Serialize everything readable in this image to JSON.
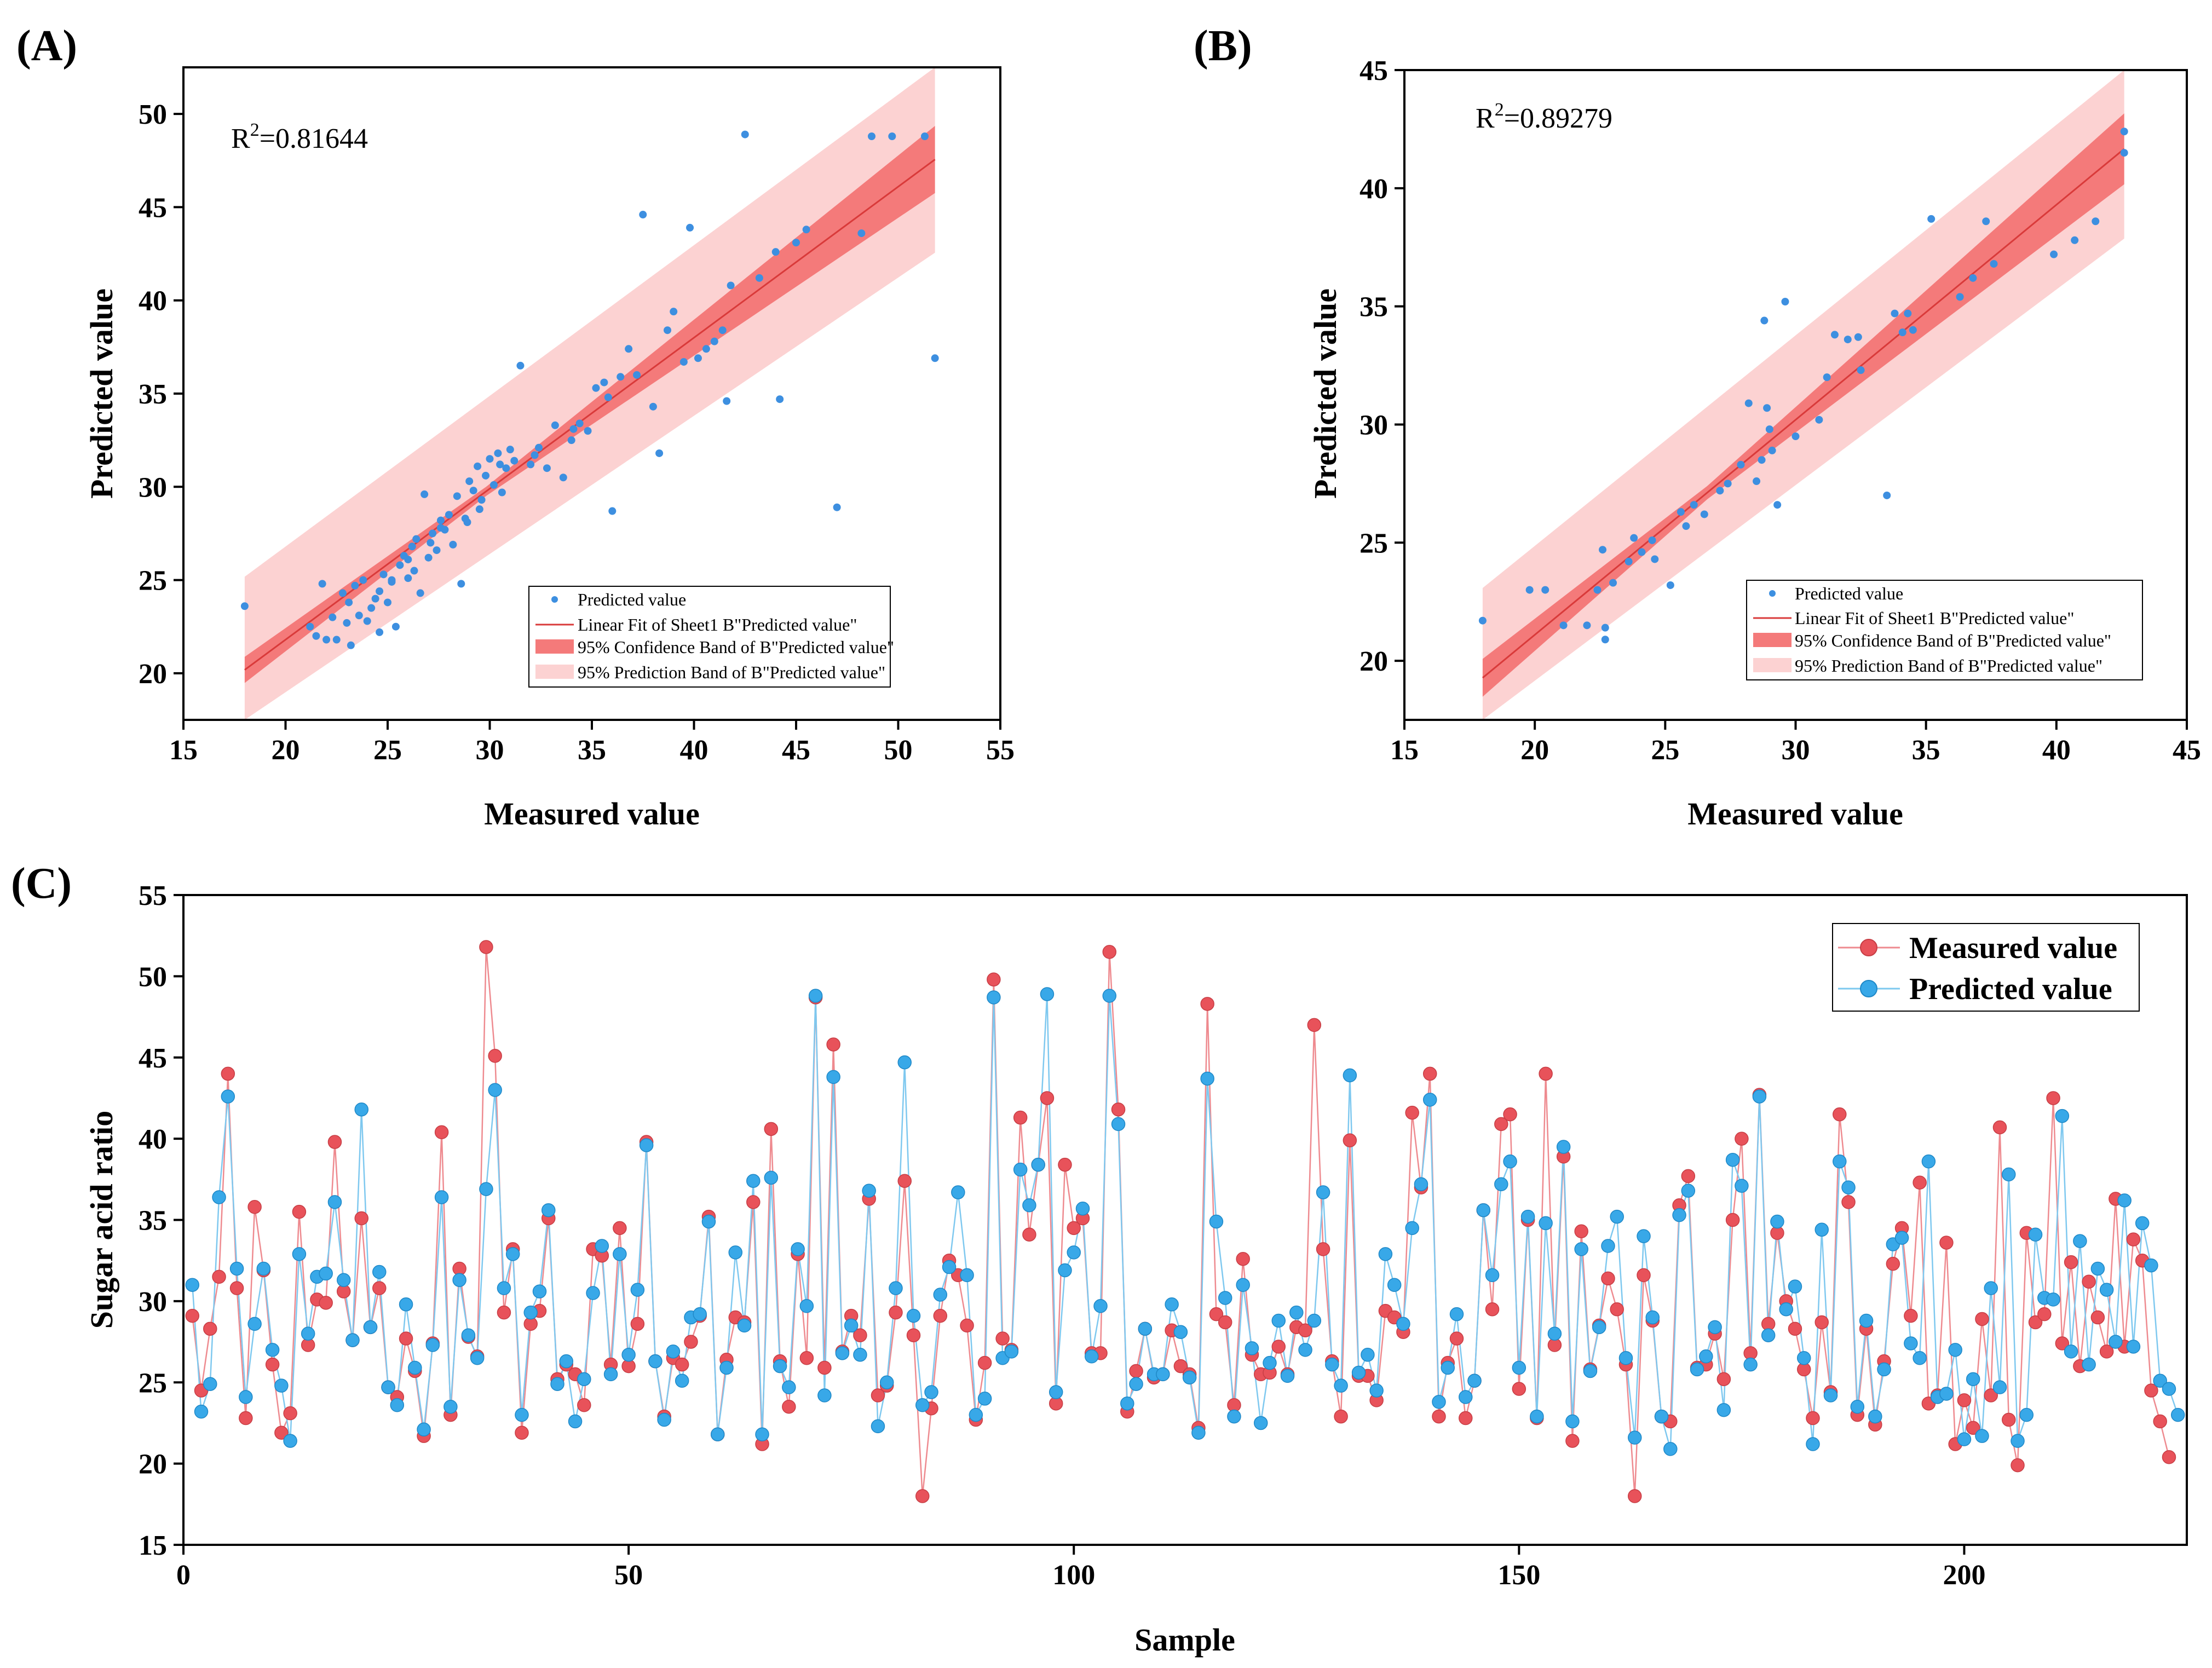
{
  "colors": {
    "measured": "#e8525a",
    "measured_line": "#ee8a8f",
    "predicted": "#38a8e8",
    "predicted_line": "#7ec8ef",
    "scatter_point": "#3d8fe0",
    "fit_line": "#d93a3a",
    "confidence_band": "#f47a7a",
    "prediction_band": "#fcd2d2"
  },
  "chart_data": [
    {
      "panel": "(A)",
      "type": "scatter",
      "xlabel": "Measured value",
      "ylabel": "Predicted value",
      "xlim": [
        15,
        55
      ],
      "ylim": [
        17.5,
        52.5
      ],
      "xticks": [
        15,
        20,
        25,
        30,
        35,
        40,
        45,
        50,
        55
      ],
      "yticks": [
        20,
        25,
        30,
        35,
        40,
        45,
        50
      ],
      "annotation": {
        "prefix": "R",
        "sup": "2",
        "value": "=0.81644"
      },
      "fit": {
        "slope": 0.81,
        "intercept": 5.6,
        "x_range": [
          18,
          51.8
        ]
      },
      "confidence_half_width": [
        0.7,
        1.8
      ],
      "prediction_half_width": 5.0,
      "legend": [
        "Predicted value",
        "Linear Fit of Sheet1 B\"Predicted value\"",
        "95% Confidence Band of B\"Predicted value\"",
        "95% Prediction Band of B\"Predicted value\""
      ],
      "points": [
        [
          18,
          23.6
        ],
        [
          21.2,
          22.5
        ],
        [
          21.5,
          22
        ],
        [
          21.8,
          24.8
        ],
        [
          22,
          21.8
        ],
        [
          22.3,
          23
        ],
        [
          22.5,
          21.8
        ],
        [
          22.8,
          24.3
        ],
        [
          23,
          22.7
        ],
        [
          23.2,
          21.5
        ],
        [
          23.4,
          24.7
        ],
        [
          23.6,
          23.1
        ],
        [
          23.8,
          25
        ],
        [
          24,
          22.8
        ],
        [
          24.2,
          23.5
        ],
        [
          24.4,
          24
        ],
        [
          24.6,
          22.2
        ],
        [
          24.8,
          25.3
        ],
        [
          25,
          23.8
        ],
        [
          25.2,
          24.9
        ],
        [
          25.4,
          22.5
        ],
        [
          25.6,
          25.8
        ],
        [
          25.8,
          26.3
        ],
        [
          26,
          25.1
        ],
        [
          26.2,
          26.8
        ],
        [
          26.4,
          27.2
        ],
        [
          26.6,
          24.3
        ],
        [
          26.8,
          29.6
        ],
        [
          27,
          26.2
        ],
        [
          27.2,
          27.5
        ],
        [
          27.4,
          26.6
        ],
        [
          27.6,
          28.2
        ],
        [
          27.8,
          27.7
        ],
        [
          28,
          28.5
        ],
        [
          28.2,
          26.9
        ],
        [
          28.4,
          29.5
        ],
        [
          28.6,
          24.8
        ],
        [
          28.8,
          28.3
        ],
        [
          29,
          30.3
        ],
        [
          29.2,
          29.8
        ],
        [
          29.4,
          31.1
        ],
        [
          29.6,
          29.3
        ],
        [
          29.8,
          30.6
        ],
        [
          30,
          31.5
        ],
        [
          30.2,
          30.1
        ],
        [
          30.4,
          31.8
        ],
        [
          30.6,
          29.7
        ],
        [
          30.8,
          31
        ],
        [
          31,
          32
        ],
        [
          31.2,
          31.4
        ],
        [
          31.5,
          36.5
        ],
        [
          32,
          31.2
        ],
        [
          32.4,
          32.1
        ],
        [
          32.8,
          31
        ],
        [
          33.2,
          33.3
        ],
        [
          33.6,
          30.5
        ],
        [
          34,
          32.5
        ],
        [
          34.4,
          33.4
        ],
        [
          34.8,
          33
        ],
        [
          35.2,
          35.3
        ],
        [
          35.6,
          35.6
        ],
        [
          36,
          28.7
        ],
        [
          36.4,
          35.9
        ],
        [
          36.8,
          37.4
        ],
        [
          37.2,
          36
        ],
        [
          37.5,
          44.6
        ],
        [
          38,
          34.3
        ],
        [
          38.3,
          31.8
        ],
        [
          38.7,
          38.4
        ],
        [
          39,
          39.4
        ],
        [
          39.5,
          36.7
        ],
        [
          39.8,
          43.9
        ],
        [
          40.2,
          36.9
        ],
        [
          40.6,
          37.4
        ],
        [
          41,
          37.8
        ],
        [
          41.4,
          38.4
        ],
        [
          41.6,
          34.6
        ],
        [
          41.8,
          40.8
        ],
        [
          42.5,
          48.9
        ],
        [
          43.2,
          41.2
        ],
        [
          44,
          42.6
        ],
        [
          44.2,
          34.7
        ],
        [
          45,
          43.1
        ],
        [
          45.5,
          43.8
        ],
        [
          47,
          28.9
        ],
        [
          48.2,
          43.6
        ],
        [
          48.7,
          48.8
        ],
        [
          49.7,
          48.8
        ],
        [
          51.3,
          48.8
        ],
        [
          51.8,
          36.9
        ],
        [
          26.3,
          25.5
        ],
        [
          27.1,
          27
        ],
        [
          28.9,
          28.1
        ],
        [
          29.5,
          28.8
        ],
        [
          25.2,
          25
        ],
        [
          26,
          26.1
        ],
        [
          30.5,
          31.2
        ],
        [
          32.2,
          31.7
        ],
        [
          34.1,
          33.1
        ],
        [
          35.8,
          34.8
        ],
        [
          23.1,
          23.8
        ],
        [
          24.6,
          24.4
        ],
        [
          27.6,
          27.8
        ]
      ]
    },
    {
      "panel": "(B)",
      "type": "scatter",
      "xlabel": "Measured value",
      "ylabel": "Predicted value",
      "xlim": [
        15,
        45
      ],
      "ylim": [
        17.5,
        45
      ],
      "xticks": [
        15,
        20,
        25,
        30,
        35,
        40,
        45
      ],
      "yticks": [
        20,
        25,
        30,
        35,
        40,
        45
      ],
      "annotation": {
        "prefix": "R",
        "sup": "2",
        "value": "=0.89279"
      },
      "fit": {
        "slope": 0.91,
        "intercept": 2.9,
        "x_range": [
          18,
          42.6
        ]
      },
      "confidence_half_width": [
        0.8,
        1.5
      ],
      "prediction_half_width": 3.8,
      "legend": [
        "Predicted value",
        "Linear Fit of Sheet1 B\"Predicted value\"",
        "95% Confidence Band of B\"Predicted value\"",
        "95% Prediction Band of B\"Predicted value\""
      ],
      "points": [
        [
          18,
          21.7
        ],
        [
          19.8,
          23
        ],
        [
          20.4,
          23
        ],
        [
          21.1,
          21.5
        ],
        [
          22,
          21.5
        ],
        [
          22.4,
          23
        ],
        [
          22.6,
          24.7
        ],
        [
          22.7,
          20.9
        ],
        [
          22.7,
          21.4
        ],
        [
          23,
          23.3
        ],
        [
          23.6,
          24.2
        ],
        [
          23.8,
          25.2
        ],
        [
          24.1,
          24.6
        ],
        [
          24.5,
          25.1
        ],
        [
          24.6,
          24.3
        ],
        [
          25.2,
          23.2
        ],
        [
          25.6,
          26.3
        ],
        [
          25.8,
          25.7
        ],
        [
          26.1,
          26.6
        ],
        [
          26.5,
          26.2
        ],
        [
          27.1,
          27.2
        ],
        [
          27.4,
          27.5
        ],
        [
          27.9,
          28.3
        ],
        [
          28.2,
          30.9
        ],
        [
          28.5,
          27.6
        ],
        [
          28.7,
          28.5
        ],
        [
          28.8,
          34.4
        ],
        [
          28.9,
          30.7
        ],
        [
          29,
          29.8
        ],
        [
          29.3,
          26.6
        ],
        [
          29.6,
          35.2
        ],
        [
          30,
          29.5
        ],
        [
          31.2,
          32
        ],
        [
          31.5,
          33.8
        ],
        [
          32,
          33.6
        ],
        [
          32.4,
          33.7
        ],
        [
          32.5,
          32.3
        ],
        [
          33.5,
          27
        ],
        [
          33.8,
          34.7
        ],
        [
          34.3,
          34.7
        ],
        [
          34.5,
          34.0
        ],
        [
          35.2,
          38.7
        ],
        [
          36.8,
          36.2
        ],
        [
          37.3,
          38.6
        ],
        [
          37.6,
          36.8
        ],
        [
          39.9,
          37.2
        ],
        [
          40.7,
          37.8
        ],
        [
          41.5,
          38.6
        ],
        [
          42.6,
          41.5
        ],
        [
          42.6,
          42.4
        ],
        [
          36.3,
          35.4
        ],
        [
          34.1,
          33.9
        ],
        [
          30.9,
          30.2
        ],
        [
          29.1,
          28.9
        ]
      ]
    },
    {
      "panel": "(C)",
      "type": "line",
      "xlabel": "Sample",
      "ylabel": "Sugar acid ratio",
      "xlim": [
        0,
        225
      ],
      "ylim": [
        15,
        55
      ],
      "xticks": [
        0,
        50,
        100,
        150,
        200
      ],
      "yticks": [
        15,
        20,
        25,
        30,
        35,
        40,
        45,
        50,
        55
      ],
      "series": [
        {
          "name": "Measured value",
          "values": [
            29.1,
            24.5,
            28.3,
            31.5,
            44,
            30.8,
            22.8,
            35.8,
            31.9,
            26.1,
            21.9,
            23.1,
            35.5,
            27.3,
            30.1,
            29.9,
            39.8,
            30.6,
            27.6,
            35.1,
            28.4,
            30.8,
            24.7,
            24.1,
            27.7,
            25.7,
            21.7,
            27.4,
            40.4,
            23,
            32,
            27.8,
            26.6,
            51.8,
            45.1,
            29.3,
            33.2,
            21.9,
            28.6,
            29.4,
            35.1,
            25.2,
            26.1,
            25.5,
            23.6,
            33.2,
            32.8,
            26.1,
            34.5,
            26,
            28.6,
            39.8,
            26.3,
            22.9,
            26.5,
            26.1,
            27.5,
            29.1,
            35.2,
            21.8,
            26.4,
            29,
            28.7,
            36.1,
            21.2,
            40.6,
            26.3,
            23.5,
            32.9,
            26.5,
            48.7,
            25.9,
            45.8,
            26.9,
            29.1,
            27.9,
            36.3,
            24.2,
            24.8,
            29.3,
            37.4,
            27.9,
            18,
            23.4,
            29.1,
            32.5,
            31.6,
            28.5,
            22.7,
            26.2,
            49.8,
            27.7,
            27,
            41.3,
            34.1,
            38.4,
            42.5,
            23.7,
            38.4,
            34.5,
            35.1,
            26.8,
            26.8,
            51.5,
            41.8,
            23.2,
            25.7,
            28.3,
            25.3,
            25.5,
            28.2,
            26,
            25.5,
            22.2,
            48.3,
            29.2,
            28.7,
            23.6,
            32.6,
            26.7,
            25.5,
            25.6,
            27.2,
            25.5,
            28.4,
            28.2,
            47,
            33.2,
            26.3,
            22.9,
            39.9,
            25.4,
            25.4,
            23.9,
            29.4,
            29,
            28.1,
            41.6,
            37,
            44,
            22.9,
            26.2,
            27.7,
            22.8,
            25.1,
            35.6,
            29.5,
            40.9,
            41.5,
            24.6,
            35,
            22.8,
            44,
            27.3,
            38.9,
            21.4,
            34.3,
            25.8,
            28.5,
            31.4,
            29.5,
            26.1,
            18,
            31.6,
            28.8,
            22.9,
            22.6,
            35.9,
            37.7,
            25.9,
            26.1,
            28,
            25.2,
            35,
            40,
            26.8,
            42.7,
            28.6,
            34.2,
            30,
            28.3,
            25.8,
            22.8,
            28.7,
            24.4,
            41.5,
            36.1,
            23,
            28.3,
            22.4,
            26.3,
            32.3,
            34.5,
            29.1,
            37.3,
            23.7,
            24.2,
            33.6,
            21.2,
            23.9,
            22.2,
            28.9,
            24.2,
            40.7,
            22.7,
            19.9,
            34.2,
            28.7,
            29.2,
            42.5,
            27.4,
            32.4,
            26,
            31.2,
            29,
            26.9,
            36.3,
            27.2,
            33.8,
            32.5,
            24.5,
            22.6,
            20.4
          ]
        },
        {
          "name": "Predicted value",
          "values": [
            31,
            23.2,
            24.9,
            36.4,
            42.6,
            32,
            24.1,
            28.6,
            32,
            27,
            24.8,
            21.4,
            32.9,
            28,
            31.5,
            31.7,
            36.1,
            31.3,
            27.6,
            41.8,
            28.4,
            31.8,
            24.7,
            23.6,
            29.8,
            25.9,
            22.1,
            27.3,
            36.4,
            23.5,
            31.3,
            27.9,
            26.5,
            36.9,
            43,
            30.8,
            32.9,
            23,
            29.3,
            30.6,
            35.6,
            24.9,
            26.3,
            22.6,
            25.2,
            30.5,
            33.4,
            25.5,
            32.9,
            26.7,
            30.7,
            39.6,
            26.3,
            22.7,
            26.9,
            25.1,
            29,
            29.2,
            34.9,
            21.8,
            25.9,
            33,
            28.5,
            37.4,
            21.8,
            37.6,
            26,
            24.7,
            33.2,
            29.7,
            48.8,
            24.2,
            43.8,
            26.8,
            28.5,
            26.7,
            36.8,
            22.3,
            25,
            30.8,
            44.7,
            29.1,
            23.6,
            24.4,
            30.4,
            32.1,
            36.7,
            31.6,
            23,
            24,
            48.7,
            26.5,
            26.9,
            38.1,
            35.9,
            38.4,
            48.9,
            24.4,
            31.9,
            33,
            35.7,
            26.6,
            29.7,
            48.8,
            40.9,
            23.7,
            24.9,
            28.3,
            25.5,
            25.5,
            29.8,
            28.1,
            25.3,
            21.9,
            43.7,
            34.9,
            30.2,
            22.9,
            31,
            27.1,
            22.5,
            26.2,
            28.8,
            25.4,
            29.3,
            27,
            28.8,
            36.7,
            26.1,
            24.8,
            43.9,
            25.6,
            26.7,
            24.5,
            32.9,
            31,
            28.6,
            34.5,
            37.2,
            42.4,
            23.8,
            25.9,
            29.2,
            24.1,
            25.1,
            35.6,
            31.6,
            37.2,
            38.6,
            25.9,
            35.2,
            22.9,
            34.8,
            28,
            39.5,
            22.6,
            33.2,
            25.7,
            28.4,
            33.4,
            35.2,
            26.5,
            21.6,
            34,
            29,
            22.9,
            20.9,
            35.3,
            36.8,
            25.8,
            26.6,
            28.4,
            23.3,
            38.7,
            37.1,
            26.1,
            42.6,
            27.9,
            34.9,
            29.5,
            30.9,
            26.5,
            21.2,
            34.4,
            24.2,
            38.6,
            37,
            23.5,
            28.8,
            22.9,
            25.8,
            33.5,
            33.9,
            27.4,
            26.5,
            38.6,
            24.1,
            24.3,
            27,
            21.5,
            25.2,
            21.7,
            30.8,
            24.7,
            37.8,
            21.4,
            23,
            34.1,
            30.2,
            30.1,
            41.4,
            26.9,
            33.7,
            26.1,
            32,
            30.7,
            27.5,
            36.2,
            27.2,
            34.8,
            32.2,
            25.1,
            24.6,
            23
          ]
        }
      ],
      "legend": [
        "Measured value",
        "Predicted value"
      ]
    }
  ]
}
